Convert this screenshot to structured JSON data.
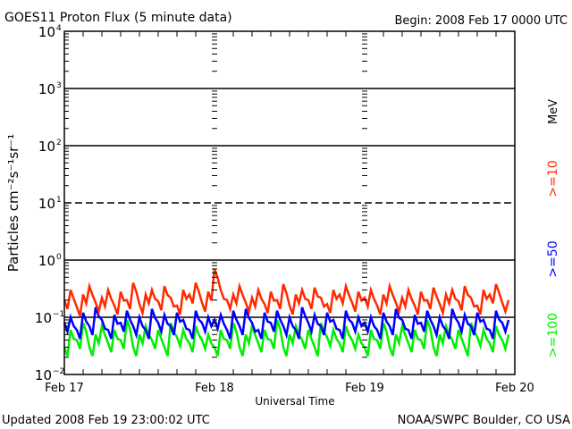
{
  "chart_data": {
    "type": "line",
    "title": "GOES11 Proton Flux (5 minute data)",
    "begin_label": "Begin: 2008 Feb 17 0000 UTC",
    "xlabel": "Universal Time",
    "ylabel": "Particles cm⁻²s⁻¹sr⁻¹",
    "y_scale": "log",
    "ylim": [
      0.01,
      10000
    ],
    "y_ticks": [
      {
        "base": "10",
        "exp": "4"
      },
      {
        "base": "10",
        "exp": "3"
      },
      {
        "base": "10",
        "exp": "2"
      },
      {
        "base": "10",
        "exp": "1"
      },
      {
        "base": "10",
        "exp": "0"
      },
      {
        "base": "10",
        "exp": "-1"
      },
      {
        "base": "10",
        "exp": "-2"
      }
    ],
    "x_ticks": [
      "Feb 17",
      "Feb 18",
      "Feb 19",
      "Feb 20"
    ],
    "x_unit": "hours since Feb 17 0000 UTC, hourly samples",
    "series": [
      {
        "name": ">=10",
        "unit": "MeV",
        "color": "#ff2a00",
        "values": [
          0.2,
          0.3,
          0.15,
          0.25,
          0.35,
          0.18,
          0.22,
          0.3,
          0.16,
          0.28,
          0.2,
          0.4,
          0.17,
          0.25,
          0.3,
          0.19,
          0.35,
          0.22,
          0.16,
          0.3,
          0.25,
          0.4,
          0.18,
          0.28,
          0.7,
          0.3,
          0.2,
          0.25,
          0.35,
          0.18,
          0.22,
          0.3,
          0.17,
          0.28,
          0.2,
          0.38,
          0.16,
          0.25,
          0.3,
          0.2,
          0.33,
          0.22,
          0.17,
          0.3,
          0.25,
          0.35,
          0.18,
          0.28,
          0.22,
          0.3,
          0.16,
          0.25,
          0.35,
          0.18,
          0.22,
          0.3,
          0.16,
          0.28,
          0.2,
          0.33,
          0.17,
          0.25,
          0.3,
          0.19,
          0.35,
          0.22,
          0.16,
          0.3,
          0.25,
          0.38,
          0.18,
          0.2
        ]
      },
      {
        "name": ">=50",
        "color": "#0000ff",
        "values": [
          0.08,
          0.1,
          0.06,
          0.12,
          0.07,
          0.15,
          0.09,
          0.06,
          0.11,
          0.08,
          0.13,
          0.07,
          0.1,
          0.06,
          0.14,
          0.08,
          0.11,
          0.07,
          0.12,
          0.09,
          0.06,
          0.13,
          0.08,
          0.1,
          0.09,
          0.11,
          0.06,
          0.13,
          0.07,
          0.14,
          0.08,
          0.06,
          0.12,
          0.08,
          0.13,
          0.07,
          0.1,
          0.06,
          0.15,
          0.08,
          0.11,
          0.07,
          0.12,
          0.09,
          0.06,
          0.13,
          0.08,
          0.1,
          0.08,
          0.1,
          0.06,
          0.12,
          0.07,
          0.14,
          0.09,
          0.06,
          0.11,
          0.08,
          0.13,
          0.07,
          0.1,
          0.06,
          0.14,
          0.08,
          0.11,
          0.07,
          0.12,
          0.09,
          0.06,
          0.13,
          0.08,
          0.09
        ]
      },
      {
        "name": ">=100",
        "color": "#00ee00",
        "values": [
          0.03,
          0.06,
          0.04,
          0.08,
          0.03,
          0.05,
          0.07,
          0.035,
          0.06,
          0.04,
          0.09,
          0.03,
          0.05,
          0.07,
          0.04,
          0.06,
          0.03,
          0.08,
          0.045,
          0.06,
          0.035,
          0.07,
          0.04,
          0.05,
          0.03,
          0.06,
          0.04,
          0.08,
          0.03,
          0.05,
          0.07,
          0.035,
          0.06,
          0.04,
          0.09,
          0.03,
          0.05,
          0.07,
          0.04,
          0.06,
          0.03,
          0.08,
          0.045,
          0.06,
          0.035,
          0.07,
          0.04,
          0.05,
          0.03,
          0.06,
          0.04,
          0.08,
          0.03,
          0.05,
          0.07,
          0.035,
          0.06,
          0.04,
          0.09,
          0.03,
          0.05,
          0.07,
          0.04,
          0.06,
          0.03,
          0.08,
          0.045,
          0.06,
          0.035,
          0.07,
          0.04,
          0.05
        ]
      }
    ],
    "grid_lines": {
      "solid": [
        "10^3",
        "10^2",
        "10^0",
        "10^-1"
      ],
      "dashed": [
        "10^1"
      ]
    }
  },
  "footer": {
    "updated": "Updated 2008 Feb 19 23:00:02 UTC",
    "credit": "NOAA/SWPC Boulder, CO USA"
  }
}
